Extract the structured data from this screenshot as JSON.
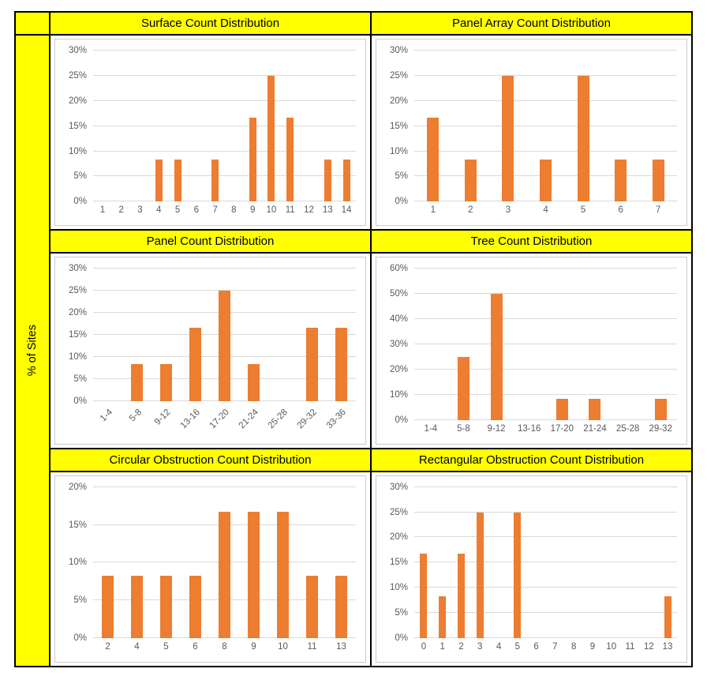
{
  "sidebar": {
    "ylabel": "% of Sites"
  },
  "colors": {
    "bar": "#ED7D31",
    "header_bg": "#FFFF00",
    "gridline": "#D9D9D9",
    "axis_text": "#595959",
    "table_border": "#000000",
    "panel_border": "#CCCBCA"
  },
  "chart_data": [
    {
      "type": "bar",
      "title": "Surface Count Distribution",
      "categories": [
        "1",
        "2",
        "3",
        "4",
        "5",
        "6",
        "7",
        "8",
        "9",
        "10",
        "11",
        "12",
        "13",
        "14"
      ],
      "values": [
        0,
        0,
        0,
        8.3,
        8.3,
        0,
        8.3,
        0,
        16.7,
        25,
        16.7,
        0,
        8.3,
        8.3
      ],
      "ylabel": "% of Sites",
      "ylim": [
        0,
        30
      ],
      "ystep": 5,
      "ytick_suffix": "%",
      "grid": true,
      "x_label_rotation": 0
    },
    {
      "type": "bar",
      "title": "Panel Array Count Distribution",
      "categories": [
        "1",
        "2",
        "3",
        "4",
        "5",
        "6",
        "7"
      ],
      "values": [
        16.7,
        8.3,
        25,
        8.3,
        25,
        8.3,
        8.3
      ],
      "ylabel": "% of Sites",
      "ylim": [
        0,
        30
      ],
      "ystep": 5,
      "ytick_suffix": "%",
      "grid": true,
      "x_label_rotation": 0
    },
    {
      "type": "bar",
      "title": "Panel Count Distribution",
      "categories": [
        "1-4",
        "5-8",
        "9-12",
        "13-16",
        "17-20",
        "21-24",
        "25-28",
        "29-32",
        "33-36"
      ],
      "values": [
        0,
        8.3,
        8.3,
        16.7,
        25,
        8.3,
        0,
        16.7,
        16.7
      ],
      "ylabel": "% of Sites",
      "ylim": [
        0,
        30
      ],
      "ystep": 5,
      "ytick_suffix": "%",
      "grid": true,
      "x_label_rotation": -45
    },
    {
      "type": "bar",
      "title": "Tree Count Distribution",
      "categories": [
        "1-4",
        "5-8",
        "9-12",
        "13-16",
        "17-20",
        "21-24",
        "25-28",
        "29-32"
      ],
      "values": [
        0,
        25,
        50,
        0,
        8.3,
        8.3,
        0,
        8.3
      ],
      "ylabel": "% of Sites",
      "ylim": [
        0,
        60
      ],
      "ystep": 10,
      "ytick_suffix": "%",
      "grid": true,
      "x_label_rotation": 0
    },
    {
      "type": "bar",
      "title": "Circular Obstruction Count Distribution",
      "categories": [
        "2",
        "4",
        "5",
        "6",
        "8",
        "9",
        "10",
        "11",
        "13"
      ],
      "values": [
        8.3,
        8.3,
        8.3,
        8.3,
        16.7,
        16.7,
        16.7,
        8.3,
        8.3
      ],
      "ylabel": "% of Sites",
      "ylim": [
        0,
        20
      ],
      "ystep": 5,
      "ytick_suffix": "%",
      "grid": true,
      "x_label_rotation": 0
    },
    {
      "type": "bar",
      "title": "Rectangular Obstruction Count Distribution",
      "categories": [
        "0",
        "1",
        "2",
        "3",
        "4",
        "5",
        "6",
        "7",
        "8",
        "9",
        "10",
        "11",
        "12",
        "13"
      ],
      "values": [
        16.7,
        8.3,
        16.7,
        25,
        0,
        25,
        0,
        0,
        0,
        0,
        0,
        0,
        0,
        8.3
      ],
      "ylabel": "% of Sites",
      "ylim": [
        0,
        30
      ],
      "ystep": 5,
      "ytick_suffix": "%",
      "grid": true,
      "x_label_rotation": 0
    }
  ]
}
